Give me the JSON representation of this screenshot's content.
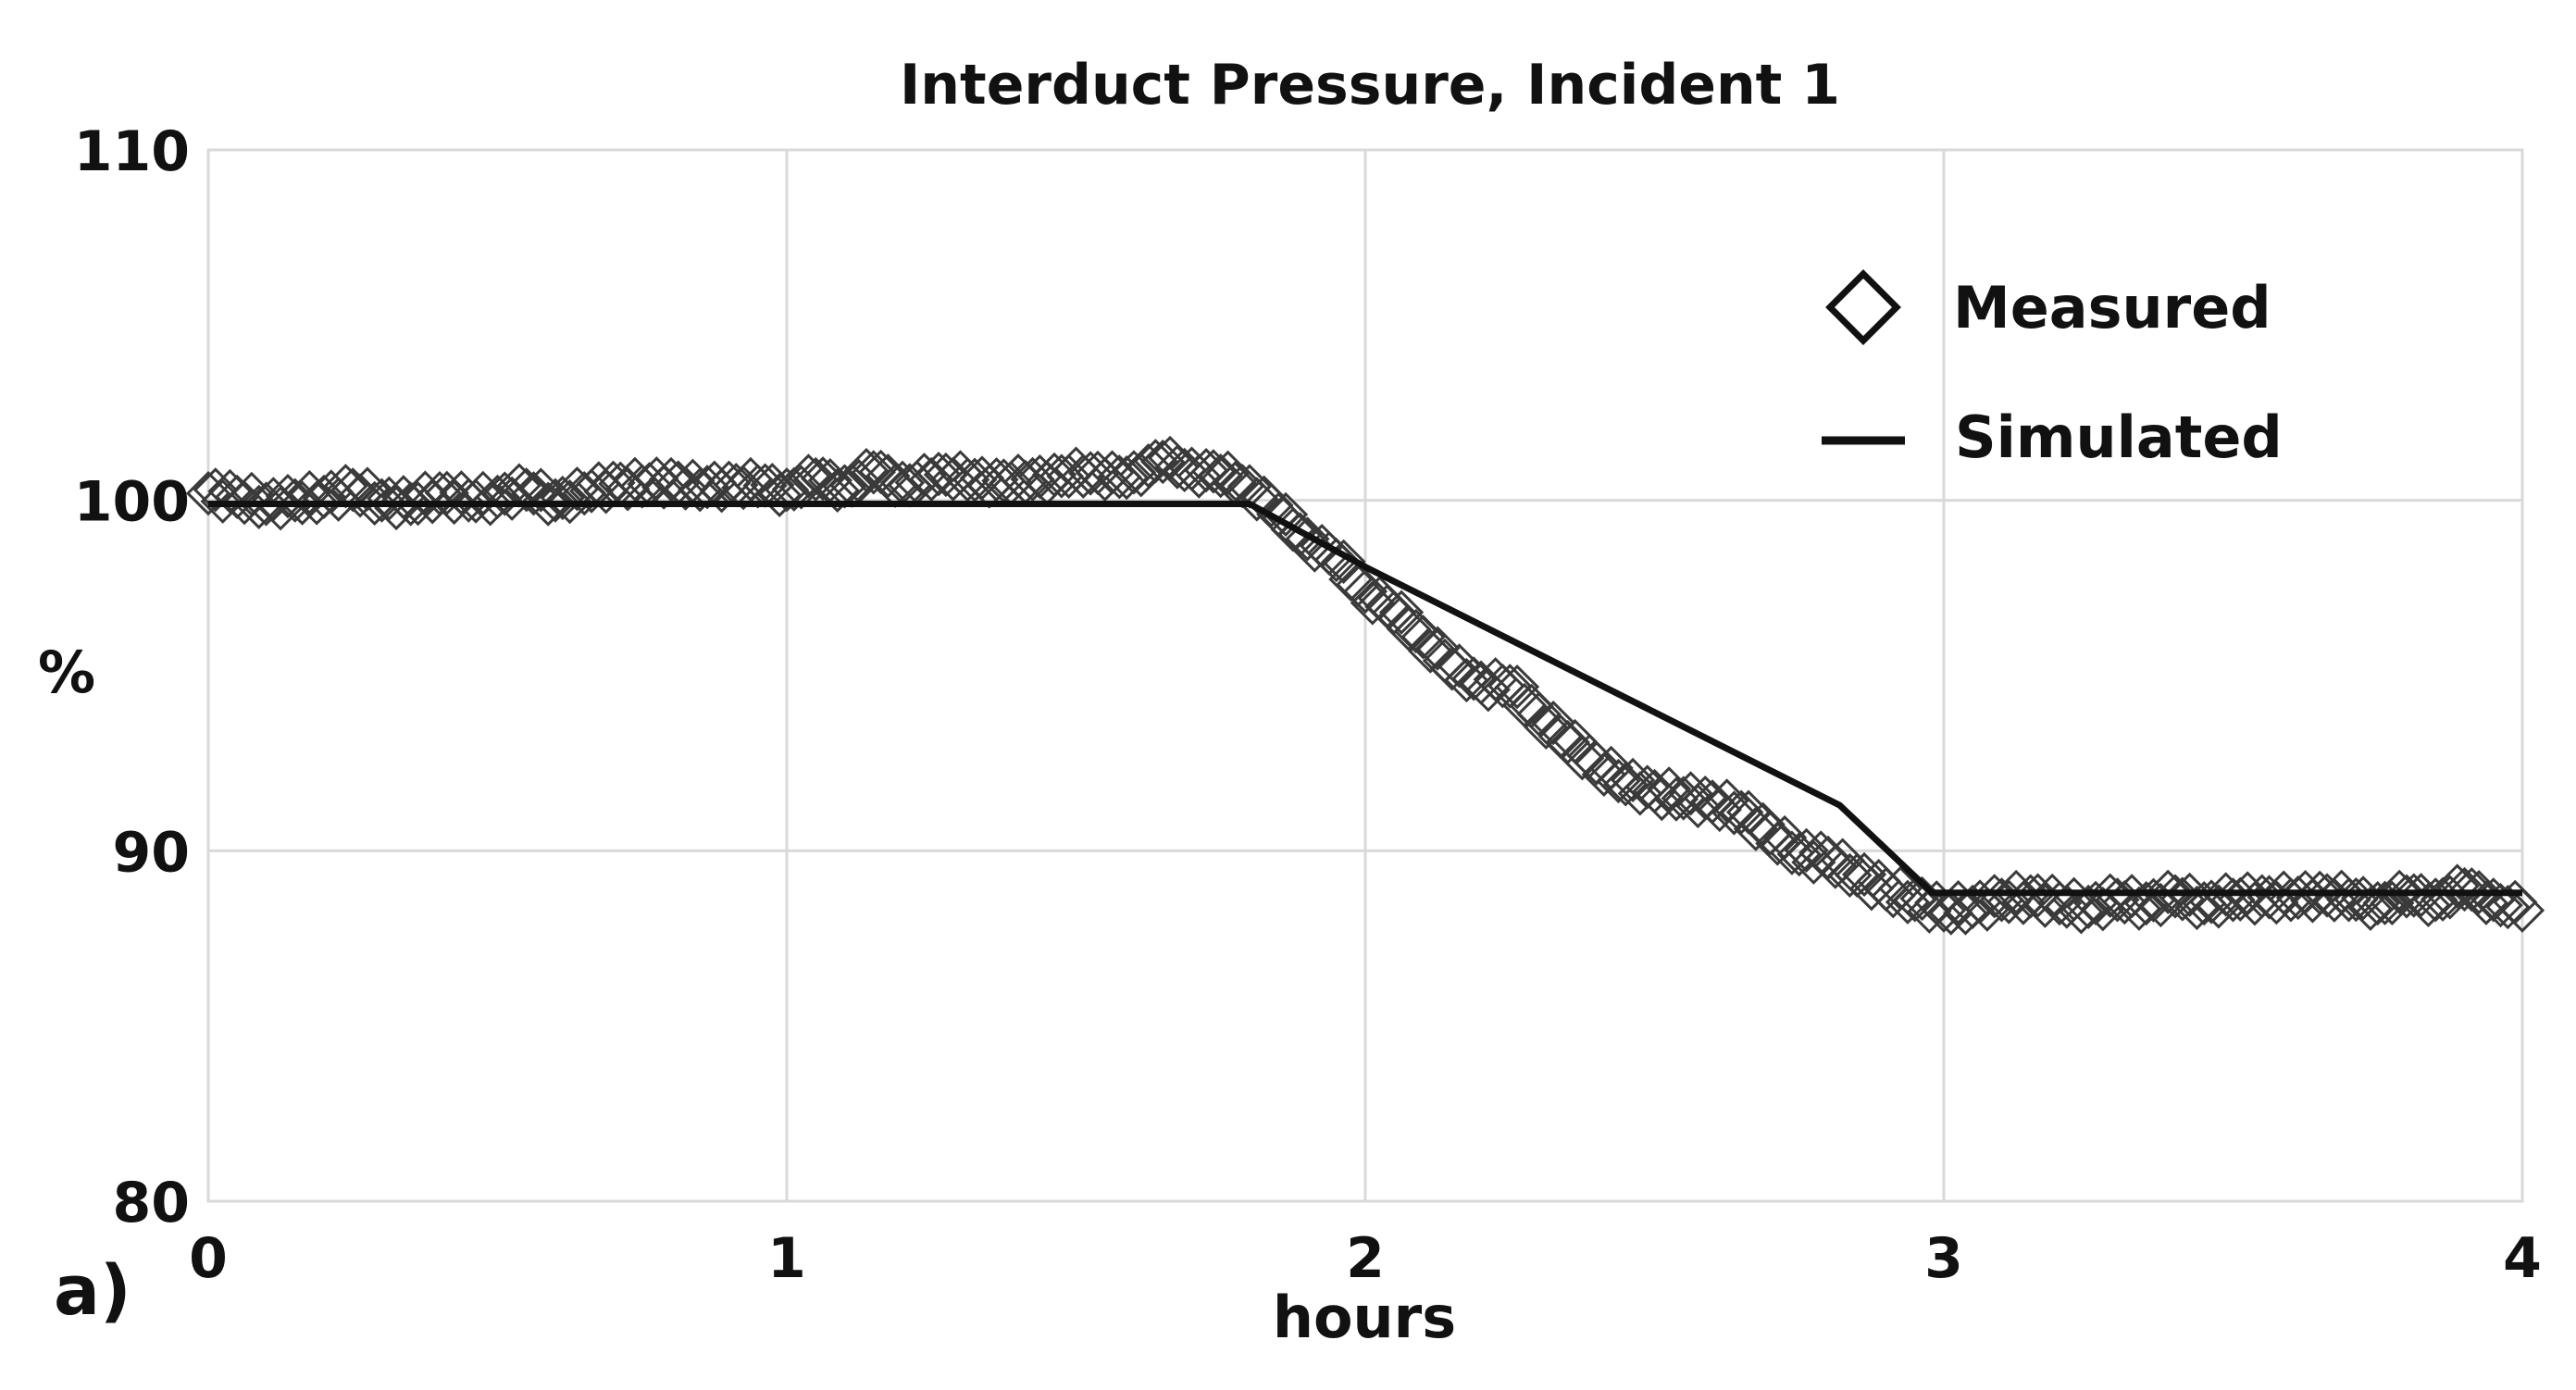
{
  "figure": {
    "panel_label": "a)"
  },
  "chart_data": {
    "type": "scatter",
    "title": "Interduct Pressure, Incident 1",
    "xlabel": "hours",
    "ylabel": "%",
    "xlim": [
      0,
      4
    ],
    "ylim": [
      80,
      110
    ],
    "x_ticks": [
      0,
      1,
      2,
      3,
      4
    ],
    "y_ticks": [
      80,
      90,
      100,
      110
    ],
    "grid": true,
    "legend_position": "top-right",
    "series": [
      {
        "name": "Measured",
        "kind": "markers",
        "marker": "diamond",
        "color": "#3a3a3a",
        "x": [
          0.0,
          0.05,
          0.1,
          0.15,
          0.2,
          0.25,
          0.3,
          0.35,
          0.4,
          0.45,
          0.5,
          0.55,
          0.6,
          0.65,
          0.7,
          0.75,
          0.8,
          0.85,
          0.9,
          0.95,
          1.0,
          1.05,
          1.1,
          1.15,
          1.2,
          1.25,
          1.3,
          1.35,
          1.4,
          1.45,
          1.5,
          1.55,
          1.6,
          1.65,
          1.7,
          1.75,
          1.8,
          1.85,
          1.9,
          1.95,
          2.0,
          2.05,
          2.1,
          2.15,
          2.2,
          2.25,
          2.3,
          2.35,
          2.4,
          2.45,
          2.5,
          2.55,
          2.6,
          2.65,
          2.7,
          2.75,
          2.8,
          2.85,
          2.9,
          2.95,
          3.0,
          3.05,
          3.1,
          3.15,
          3.2,
          3.25,
          3.3,
          3.35,
          3.4,
          3.45,
          3.5,
          3.55,
          3.6,
          3.65,
          3.7,
          3.75,
          3.8,
          3.85,
          3.9,
          3.95,
          4.0
        ],
        "y": [
          100.2,
          100.1,
          99.9,
          100.0,
          100.1,
          100.3,
          100.0,
          99.9,
          100.2,
          100.0,
          100.1,
          100.3,
          100.0,
          100.2,
          100.5,
          100.4,
          100.6,
          100.3,
          100.5,
          100.4,
          100.3,
          100.6,
          100.4,
          100.8,
          100.5,
          100.6,
          100.8,
          100.4,
          100.7,
          100.5,
          100.9,
          100.6,
          100.8,
          101.1,
          100.9,
          100.7,
          100.4,
          99.6,
          98.9,
          98.3,
          97.4,
          96.8,
          96.1,
          95.2,
          94.8,
          94.7,
          93.9,
          93.1,
          92.5,
          91.9,
          91.7,
          91.5,
          91.4,
          91.1,
          90.5,
          89.9,
          89.8,
          89.3,
          88.9,
          88.6,
          88.3,
          88.4,
          88.6,
          88.7,
          88.5,
          88.4,
          88.6,
          88.5,
          88.7,
          88.5,
          88.6,
          88.7,
          88.6,
          88.8,
          88.6,
          88.5,
          88.7,
          88.6,
          88.9,
          88.6,
          88.3
        ]
      },
      {
        "name": "Simulated",
        "kind": "line",
        "color": "#111111",
        "x": [
          0.0,
          1.8,
          2.0,
          2.82,
          2.98,
          4.0
        ],
        "y": [
          99.9,
          99.9,
          98.1,
          91.3,
          88.8,
          88.8
        ]
      }
    ]
  }
}
